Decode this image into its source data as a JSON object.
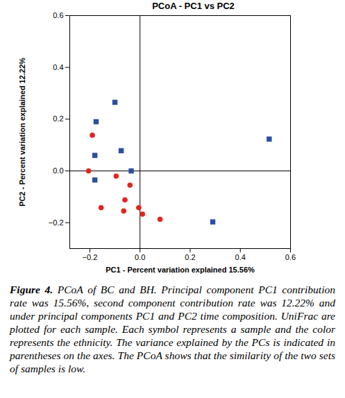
{
  "chart_data": {
    "type": "scatter",
    "title": "PCoA - PC1 vs PC2",
    "x_label": "PC1 - Percent variation explained 15.56%",
    "y_label": "PC2 - Percent variation explained 12.22%",
    "xlim": [
      -0.28,
      0.6
    ],
    "ylim": [
      -0.3,
      0.6
    ],
    "xticks": [
      {
        "value": -0.2,
        "label": "−0.2"
      },
      {
        "value": 0,
        "label": "0.0"
      },
      0.2,
      0.4,
      0.6
    ],
    "yticks": [
      {
        "value": -0.2,
        "label": "−0.2"
      },
      {
        "value": 0,
        "label": "0.0"
      },
      0.2,
      0.4,
      0.6
    ],
    "grid": false,
    "series": [
      {
        "color": "#2a4fa3",
        "marker": "square",
        "x": [
          -0.1,
          -0.175,
          -0.18,
          -0.075,
          -0.035,
          -0.18,
          0.515,
          0.29
        ],
        "y": [
          0.265,
          0.19,
          0.06,
          0.078,
          0.0,
          -0.035,
          0.123,
          -0.197
        ]
      },
      {
        "color": "#e0261f",
        "marker": "circle",
        "x": [
          -0.19,
          -0.205,
          -0.095,
          -0.04,
          -0.06,
          -0.155,
          -0.065,
          -0.005,
          0.01,
          0.08
        ],
        "y": [
          0.138,
          0.0,
          -0.02,
          -0.055,
          -0.112,
          -0.142,
          -0.155,
          -0.142,
          -0.167,
          -0.187
        ]
      }
    ],
    "caption_label": "Figure 4.",
    "caption": "PCoA of BC and BH. Principal component PC1 contribution rate was 15.56%, second component contribution rate was 12.22% and under principal components PC1 and PC2 time composition. UniFrac are plotted for each sample. Each symbol represents a sample and the color represents the ethnicity. The variance explained by the PCs is indicated in parentheses on the axes. The PCoA shows that the similarity of the two sets of samples is low."
  }
}
